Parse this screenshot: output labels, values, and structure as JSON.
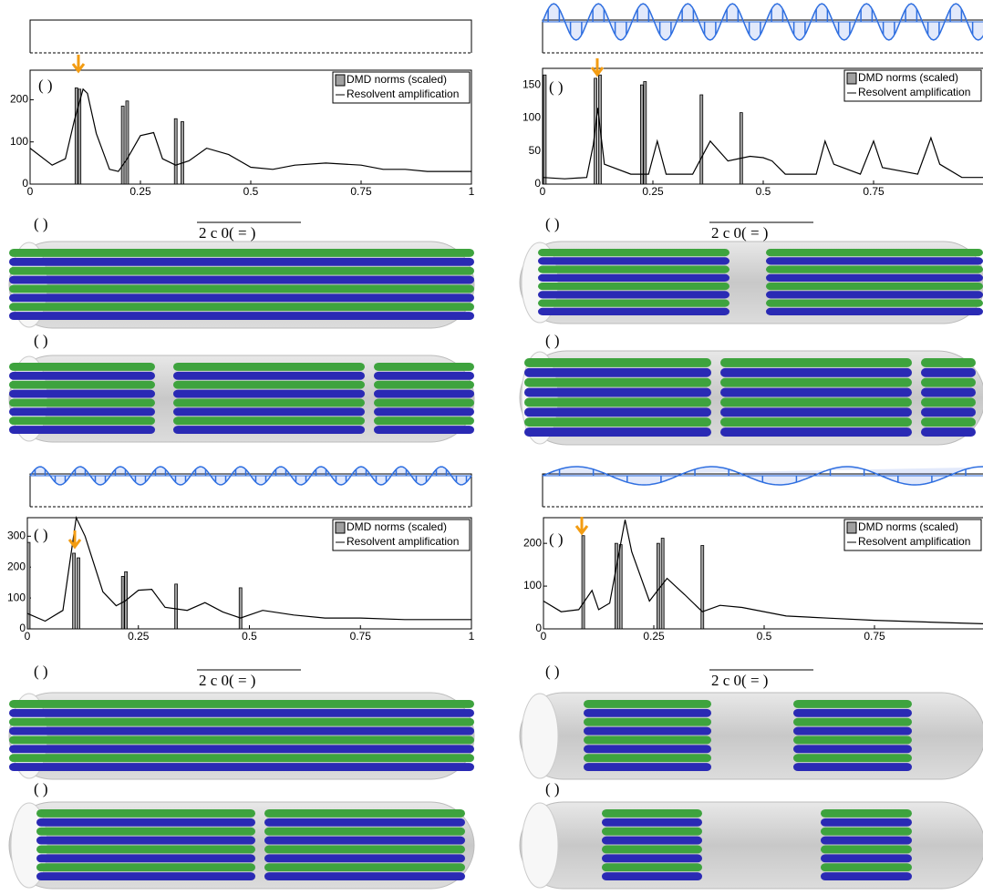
{
  "annotations": [
    "( )",
    "( )",
    "( )",
    "( )",
    "( )",
    "( )",
    "( )",
    "( )",
    "( )",
    "( )",
    "( )",
    "( )"
  ],
  "captions": [
    "2  c 0( = )",
    "2  c 0( = )",
    "2  c 0( = )",
    "2  c 0( = )"
  ],
  "chart_data": [
    {
      "type": "bar-line",
      "xlim": [
        0,
        1
      ],
      "xticks": [
        0,
        0.25,
        0.5,
        0.75,
        1
      ],
      "ylim": [
        0,
        270
      ],
      "yticks": [
        0,
        100,
        200
      ],
      "series": [
        {
          "name": "DMD norms (scaled)",
          "color": "#a0a0a0",
          "x": [
            0.105,
            0.112,
            0.21,
            0.22,
            0.33,
            0.345
          ],
          "values": [
            228,
            225,
            185,
            197,
            155,
            148
          ]
        },
        {
          "name": "Resolvent amplification",
          "color": "#000000",
          "x": [
            0,
            0.05,
            0.08,
            0.1,
            0.12,
            0.13,
            0.15,
            0.18,
            0.2,
            0.22,
            0.25,
            0.28,
            0.3,
            0.33,
            0.36,
            0.4,
            0.45,
            0.5,
            0.55,
            0.6,
            0.67,
            0.75,
            0.8,
            0.85,
            0.9,
            1
          ],
          "values": [
            85,
            45,
            60,
            150,
            225,
            215,
            120,
            35,
            30,
            60,
            115,
            122,
            60,
            45,
            55,
            85,
            70,
            40,
            35,
            45,
            50,
            45,
            35,
            35,
            30,
            30
          ]
        }
      ]
    },
    {
      "type": "bar-line",
      "xlim": [
        0,
        1
      ],
      "xticks": [
        0,
        0.25,
        0.5,
        0.75
      ],
      "ylim": [
        0,
        175
      ],
      "yticks": [
        0,
        50,
        100,
        150
      ],
      "series": [
        {
          "name": "DMD norms (scaled)",
          "color": "#a0a0a0",
          "x": [
            0.005,
            0.12,
            0.13,
            0.225,
            0.232,
            0.36,
            0.45
          ],
          "values": [
            165,
            160,
            165,
            150,
            155,
            135,
            108
          ]
        },
        {
          "name": "Resolvent amplification",
          "color": "#000000",
          "x": [
            0,
            0.05,
            0.1,
            0.115,
            0.125,
            0.14,
            0.2,
            0.24,
            0.26,
            0.28,
            0.34,
            0.38,
            0.42,
            0.47,
            0.5,
            0.52,
            0.55,
            0.62,
            0.64,
            0.66,
            0.72,
            0.75,
            0.77,
            0.85,
            0.88,
            0.9,
            0.95,
            1
          ],
          "values": [
            10,
            8,
            10,
            60,
            115,
            30,
            15,
            15,
            65,
            15,
            15,
            65,
            35,
            42,
            40,
            35,
            15,
            15,
            65,
            30,
            15,
            65,
            25,
            15,
            70,
            30,
            10,
            10
          ]
        }
      ]
    },
    {
      "type": "bar-line",
      "xlim": [
        0,
        1
      ],
      "xticks": [
        0,
        0.25,
        0.5,
        0.75,
        1
      ],
      "ylim": [
        0,
        360
      ],
      "yticks": [
        0,
        100,
        200,
        300
      ],
      "series": [
        {
          "name": "DMD norms (scaled)",
          "color": "#a0a0a0",
          "x": [
            0.003,
            0.105,
            0.115,
            0.215,
            0.222,
            0.335,
            0.48
          ],
          "values": [
            280,
            245,
            230,
            170,
            185,
            145,
            133
          ]
        },
        {
          "name": "Resolvent amplification",
          "color": "#000000",
          "x": [
            0,
            0.04,
            0.08,
            0.11,
            0.13,
            0.17,
            0.2,
            0.22,
            0.25,
            0.28,
            0.31,
            0.36,
            0.4,
            0.44,
            0.48,
            0.53,
            0.6,
            0.67,
            0.75,
            0.85,
            1
          ],
          "values": [
            50,
            25,
            60,
            360,
            300,
            120,
            75,
            90,
            125,
            128,
            70,
            60,
            85,
            55,
            35,
            60,
            45,
            35,
            35,
            30,
            30
          ]
        }
      ]
    },
    {
      "type": "bar-line",
      "xlim": [
        0,
        1
      ],
      "xticks": [
        0,
        0.25,
        0.5,
        0.75
      ],
      "ylim": [
        0,
        260
      ],
      "yticks": [
        0,
        100,
        200
      ],
      "series": [
        {
          "name": "DMD norms (scaled)",
          "color": "#a0a0a0",
          "x": [
            0.09,
            0.165,
            0.175,
            0.26,
            0.27,
            0.36
          ],
          "values": [
            218,
            200,
            197,
            200,
            212,
            195
          ]
        },
        {
          "name": "Resolvent amplification",
          "color": "#000000",
          "x": [
            0,
            0.04,
            0.08,
            0.11,
            0.125,
            0.15,
            0.175,
            0.185,
            0.2,
            0.24,
            0.28,
            0.32,
            0.36,
            0.4,
            0.45,
            0.55,
            0.65,
            0.75,
            0.9,
            1
          ],
          "values": [
            65,
            40,
            45,
            90,
            45,
            60,
            200,
            255,
            180,
            65,
            118,
            80,
            40,
            55,
            50,
            30,
            25,
            20,
            15,
            12
          ]
        }
      ]
    }
  ]
}
